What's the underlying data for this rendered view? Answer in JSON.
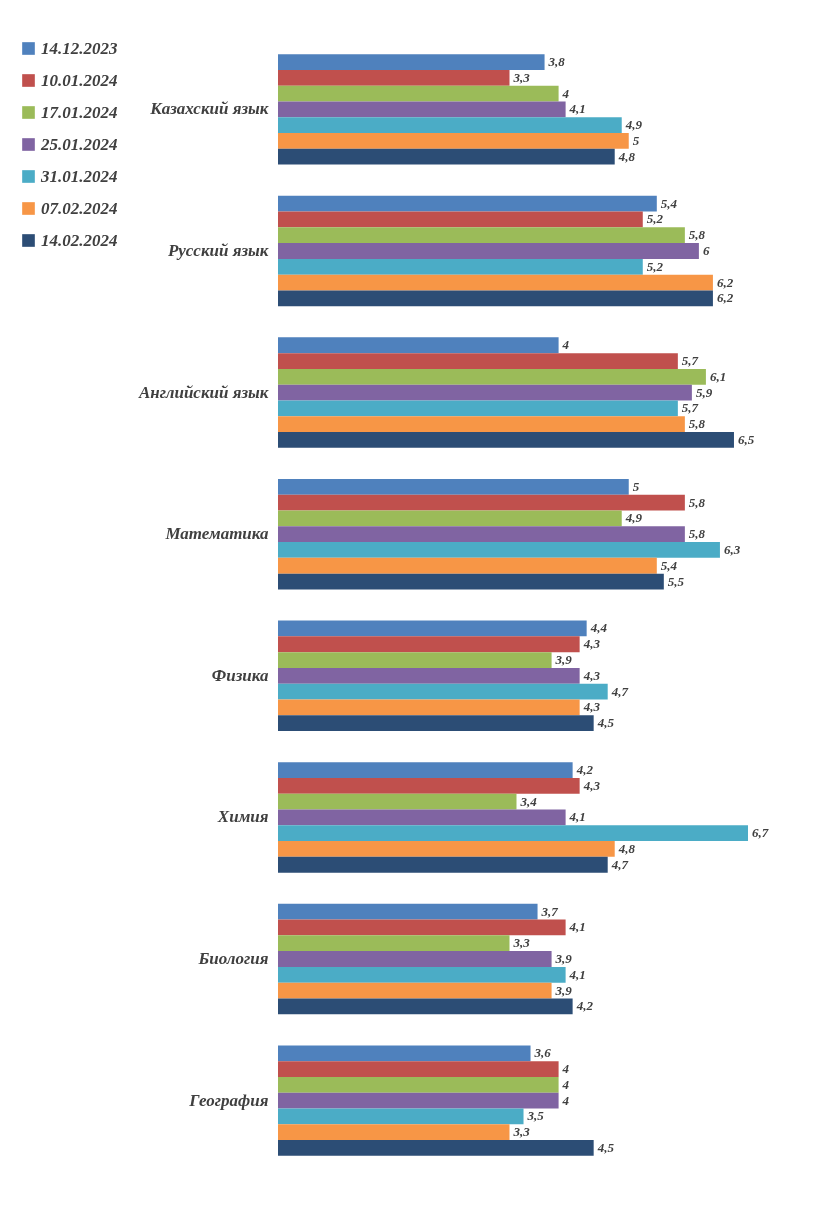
{
  "chart_data": {
    "type": "bar",
    "orientation": "horizontal",
    "categories": [
      "Казахский язык",
      "Русский язык",
      "Английский язык",
      "Математика",
      "Физика",
      "Химия",
      "Биология",
      "География"
    ],
    "series": [
      {
        "name": "14.12.2023",
        "color": "#4f81bd",
        "values": [
          3.8,
          5.4,
          4,
          5,
          4.4,
          4.2,
          3.7,
          3.6
        ],
        "value_labels": [
          "3,8",
          "5,4",
          "4",
          "5",
          "4,4",
          "4,2",
          "3,7",
          "3,6"
        ]
      },
      {
        "name": "10.01.2024",
        "color": "#c0504d",
        "values": [
          3.3,
          5.2,
          5.7,
          5.8,
          4.3,
          4.3,
          4.1,
          4
        ],
        "value_labels": [
          "3,3",
          "5,2",
          "5,7",
          "5,8",
          "4,3",
          "4,3",
          "4,1",
          "4"
        ]
      },
      {
        "name": "17.01.2024",
        "color": "#9bbb59",
        "values": [
          4,
          5.8,
          6.1,
          4.9,
          3.9,
          3.4,
          3.3,
          4
        ],
        "value_labels": [
          "4",
          "5,8",
          "6,1",
          "4,9",
          "3,9",
          "3,4",
          "3,3",
          "4"
        ]
      },
      {
        "name": "25.01.2024",
        "color": "#8064a2",
        "values": [
          4.1,
          6,
          5.9,
          5.8,
          4.3,
          4.1,
          3.9,
          4
        ],
        "value_labels": [
          "4,1",
          "6",
          "5,9",
          "5,8",
          "4,3",
          "4,1",
          "3,9",
          "4"
        ]
      },
      {
        "name": "31.01.2024",
        "color": "#4bacc6",
        "values": [
          4.9,
          5.2,
          5.7,
          6.3,
          4.7,
          6.7,
          4.1,
          3.5
        ],
        "value_labels": [
          "4,9",
          "5,2",
          "5,7",
          "6,3",
          "4,7",
          "6,7",
          "4,1",
          "3,5"
        ]
      },
      {
        "name": "07.02.2024",
        "color": "#f79646",
        "values": [
          5,
          6.2,
          5.8,
          5.4,
          4.3,
          4.8,
          3.9,
          3.3
        ],
        "value_labels": [
          "5",
          "6,2",
          "5,8",
          "5,4",
          "4,3",
          "4,8",
          "3,9",
          "3,3"
        ]
      },
      {
        "name": "14.02.2024",
        "color": "#2c4d75",
        "values": [
          4.8,
          6.2,
          6.5,
          5.5,
          4.5,
          4.7,
          4.2,
          4.5
        ],
        "value_labels": [
          "4,8",
          "6,2",
          "6,5",
          "5,5",
          "4,5",
          "4,7",
          "4,2",
          "4,5"
        ]
      }
    ],
    "grid": false,
    "legend": "left"
  }
}
